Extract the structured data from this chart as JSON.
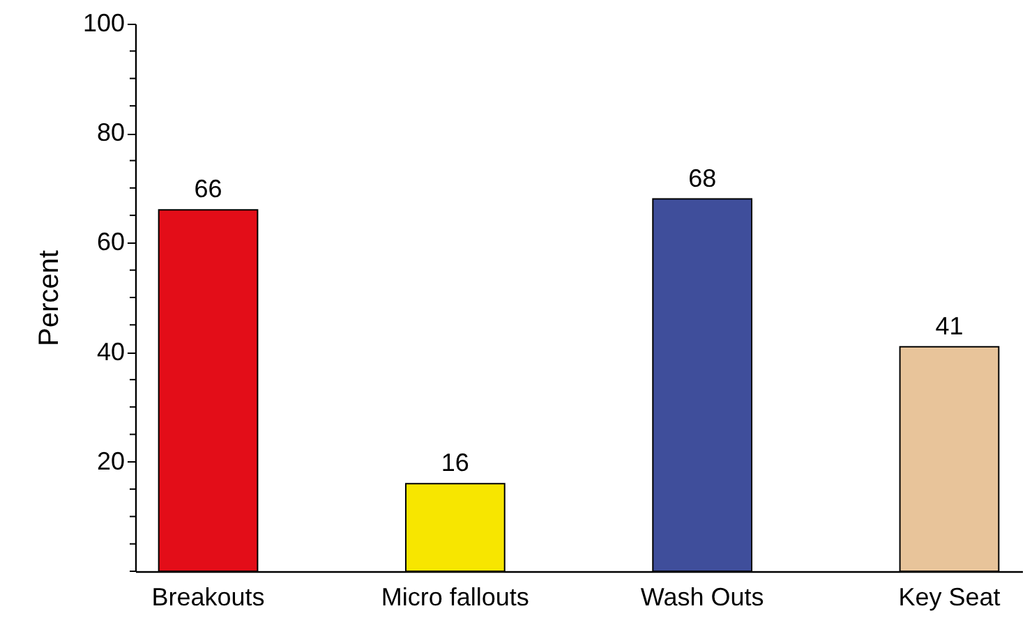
{
  "chart_data": {
    "type": "bar",
    "ylabel": "Percent",
    "categories": [
      "Breakouts",
      "Micro   fallouts",
      "Wash Outs",
      "Key Seat"
    ],
    "values": [
      66,
      16,
      68,
      41
    ],
    "colors": [
      "#e30d18",
      "#f7e600",
      "#3f4e9b",
      "#e8c49a"
    ],
    "ylim": [
      0,
      100
    ],
    "yticks": [
      {
        "value": 0,
        "label": null
      },
      {
        "value": 5,
        "label": null
      },
      {
        "value": 10,
        "label": null
      },
      {
        "value": 15,
        "label": null
      },
      20,
      {
        "value": 25,
        "label": null
      },
      {
        "value": 30,
        "label": null
      },
      {
        "value": 35,
        "label": null
      },
      40,
      {
        "value": 45,
        "label": null
      },
      {
        "value": 50,
        "label": null
      },
      {
        "value": 55,
        "label": null
      },
      60,
      {
        "value": 65,
        "label": null
      },
      {
        "value": 70,
        "label": null
      },
      {
        "value": 75,
        "label": null
      },
      80,
      {
        "value": 85,
        "label": null
      },
      {
        "value": 90,
        "label": null
      },
      {
        "value": 95,
        "label": null
      },
      100
    ],
    "data_labels": true,
    "grid": false
  }
}
